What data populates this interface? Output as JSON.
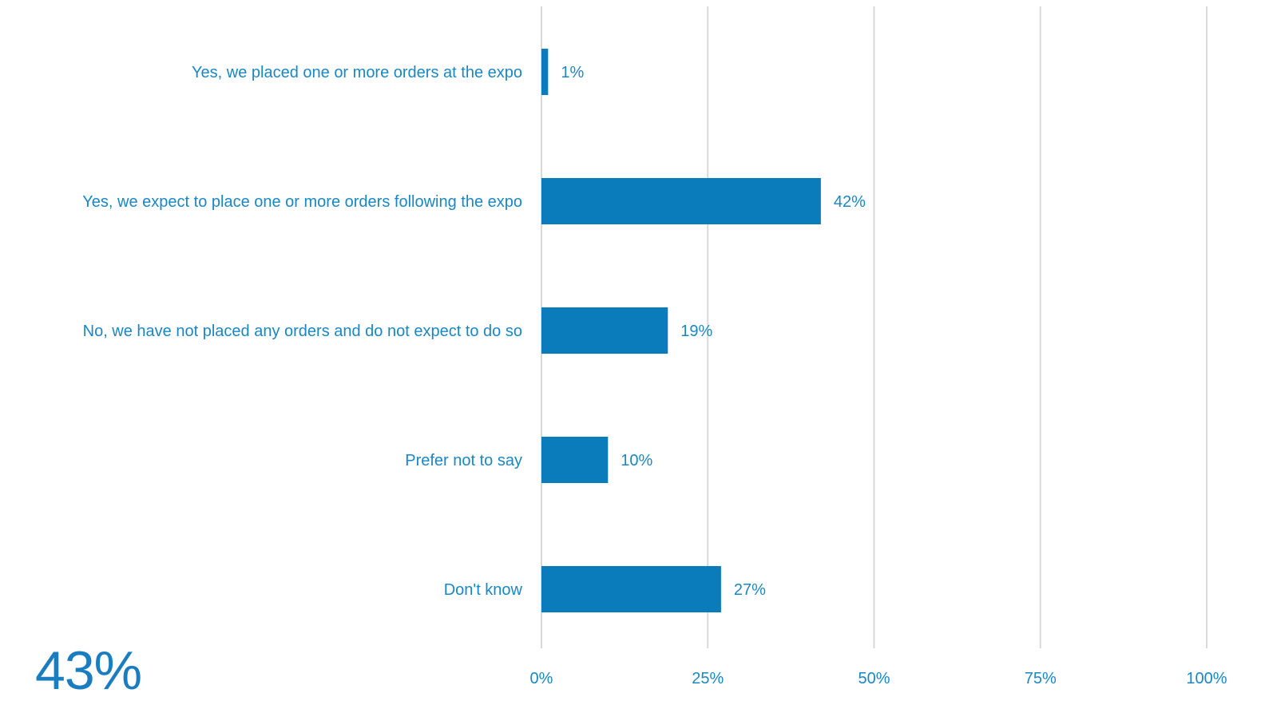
{
  "chart_data": {
    "type": "bar",
    "orientation": "horizontal",
    "categories": [
      "Yes, we placed one or more orders at the expo",
      "Yes, we expect to place one or more orders following the expo",
      "No, we have not placed any orders and do not expect to do so",
      "Prefer not to say",
      "Don't know"
    ],
    "values": [
      1,
      42,
      19,
      10,
      27
    ],
    "value_labels": [
      "1%",
      "42%",
      "19%",
      "10%",
      "27%"
    ],
    "xlim": [
      0,
      100
    ],
    "x_ticks": [
      0,
      25,
      50,
      75,
      100
    ],
    "x_tick_labels": [
      "0%",
      "25%",
      "50%",
      "75%",
      "100%"
    ],
    "grid": "vertical",
    "title": "",
    "xlabel": "",
    "ylabel": ""
  },
  "highlight": {
    "value": "43%"
  },
  "colors": {
    "bar": "#0a7cbc",
    "text": "#1a87c5",
    "grid": "#d9d9d9"
  }
}
